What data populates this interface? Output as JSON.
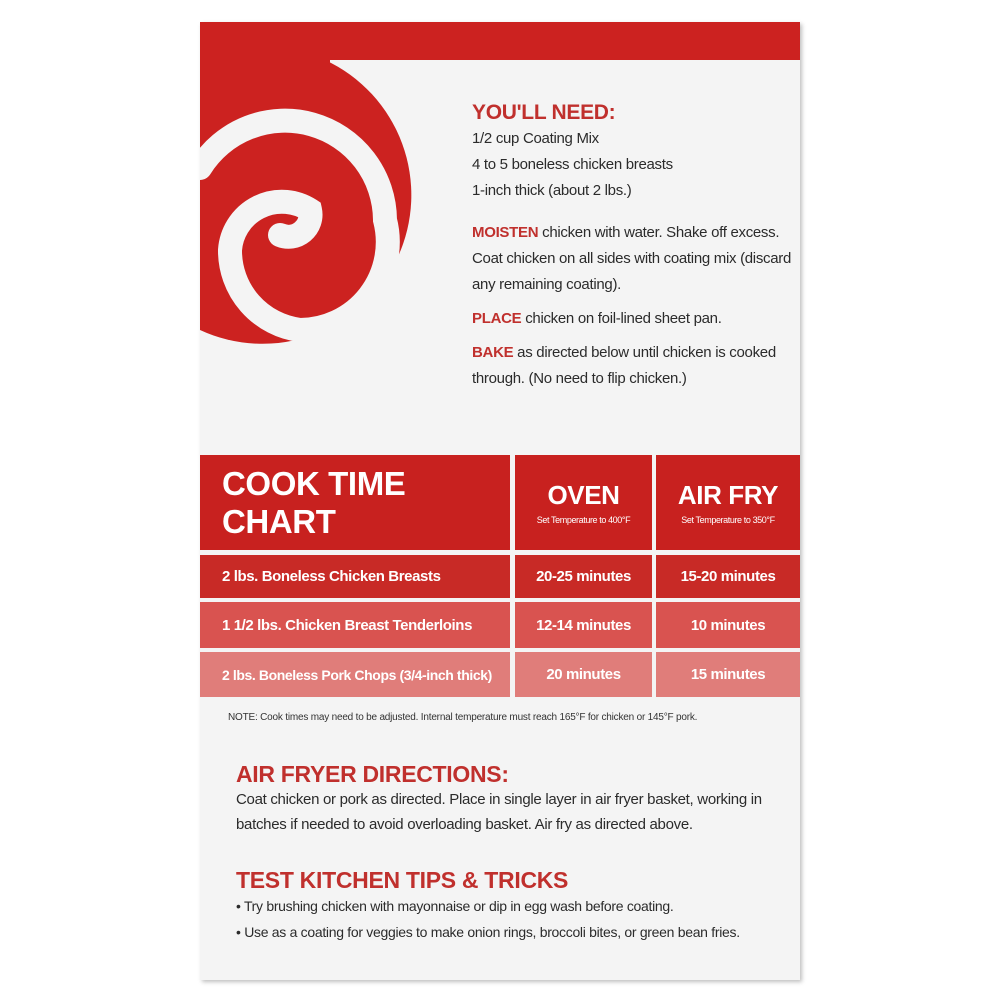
{
  "colors": {
    "brand_red": "#cc2220",
    "row1": "#c82a26",
    "row2": "#d95350",
    "row3": "#e07d7a"
  },
  "logo": {
    "icon": "spiral-logo"
  },
  "youll_need": {
    "heading": "YOU'LL NEED:",
    "items": [
      "1/2 cup Coating Mix",
      "4 to 5 boneless chicken breasts",
      "1-inch thick (about 2 lbs.)"
    ]
  },
  "steps": [
    {
      "keyword": "MOISTEN",
      "text": " chicken with water. Shake off excess. Coat chicken on all sides with coating mix (discard any remaining coating)."
    },
    {
      "keyword": "PLACE",
      "text": " chicken on foil-lined sheet pan."
    },
    {
      "keyword": "BAKE",
      "text": " as directed below until chicken is cooked through. (No need to flip chicken.)"
    }
  ],
  "chart": {
    "title": "COOK TIME CHART",
    "columns": [
      {
        "label": "OVEN",
        "sub": "Set Temperature to 400°F"
      },
      {
        "label": "AIR FRY",
        "sub": "Set Temperature to 350°F"
      }
    ],
    "rows": [
      {
        "item": "2 lbs. Boneless Chicken Breasts",
        "oven": "20-25 minutes",
        "air_fry": "15-20 minutes"
      },
      {
        "item": "1 1/2 lbs. Chicken Breast Tenderloins",
        "oven": "12-14 minutes",
        "air_fry": "10 minutes"
      },
      {
        "item": "2 lbs. Boneless Pork Chops (3/4-inch thick)",
        "oven": "20 minutes",
        "air_fry": "15 minutes"
      }
    ],
    "note": "NOTE: Cook times may need to be adjusted. Internal temperature must reach 165°F for chicken or 145°F pork."
  },
  "air_fryer": {
    "heading": "AIR FRYER DIRECTIONS:",
    "text": "Coat chicken or pork as directed. Place in single layer in air fryer basket, working in batches if needed to avoid overloading basket. Air fry as directed above."
  },
  "tips": {
    "heading": "TEST KITCHEN TIPS & TRICKS",
    "items": [
      "Try brushing chicken with mayonnaise or dip in egg wash before coating.",
      "Use as a coating for veggies to make onion rings, broccoli bites, or green bean fries."
    ]
  }
}
